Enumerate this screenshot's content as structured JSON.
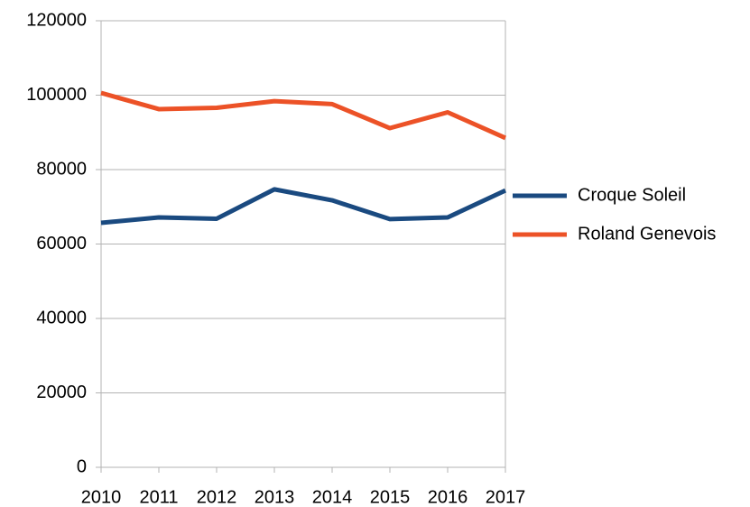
{
  "chart_data": {
    "type": "line",
    "categories": [
      "2010",
      "2011",
      "2012",
      "2013",
      "2014",
      "2015",
      "2016",
      "2017"
    ],
    "series": [
      {
        "name": "Croque Soleil",
        "color": "#1a4a80",
        "values": [
          65700,
          67150,
          66800,
          74700,
          71750,
          66700,
          67150,
          74400
        ]
      },
      {
        "name": "Roland Genevois",
        "color": "#ec5227",
        "values": [
          100600,
          96250,
          96600,
          98400,
          97600,
          91150,
          95400,
          88500
        ]
      }
    ],
    "ylim": [
      0,
      120000
    ],
    "yticks": [
      0,
      20000,
      40000,
      60000,
      80000,
      100000,
      120000
    ],
    "grid": true,
    "legend": "right"
  }
}
